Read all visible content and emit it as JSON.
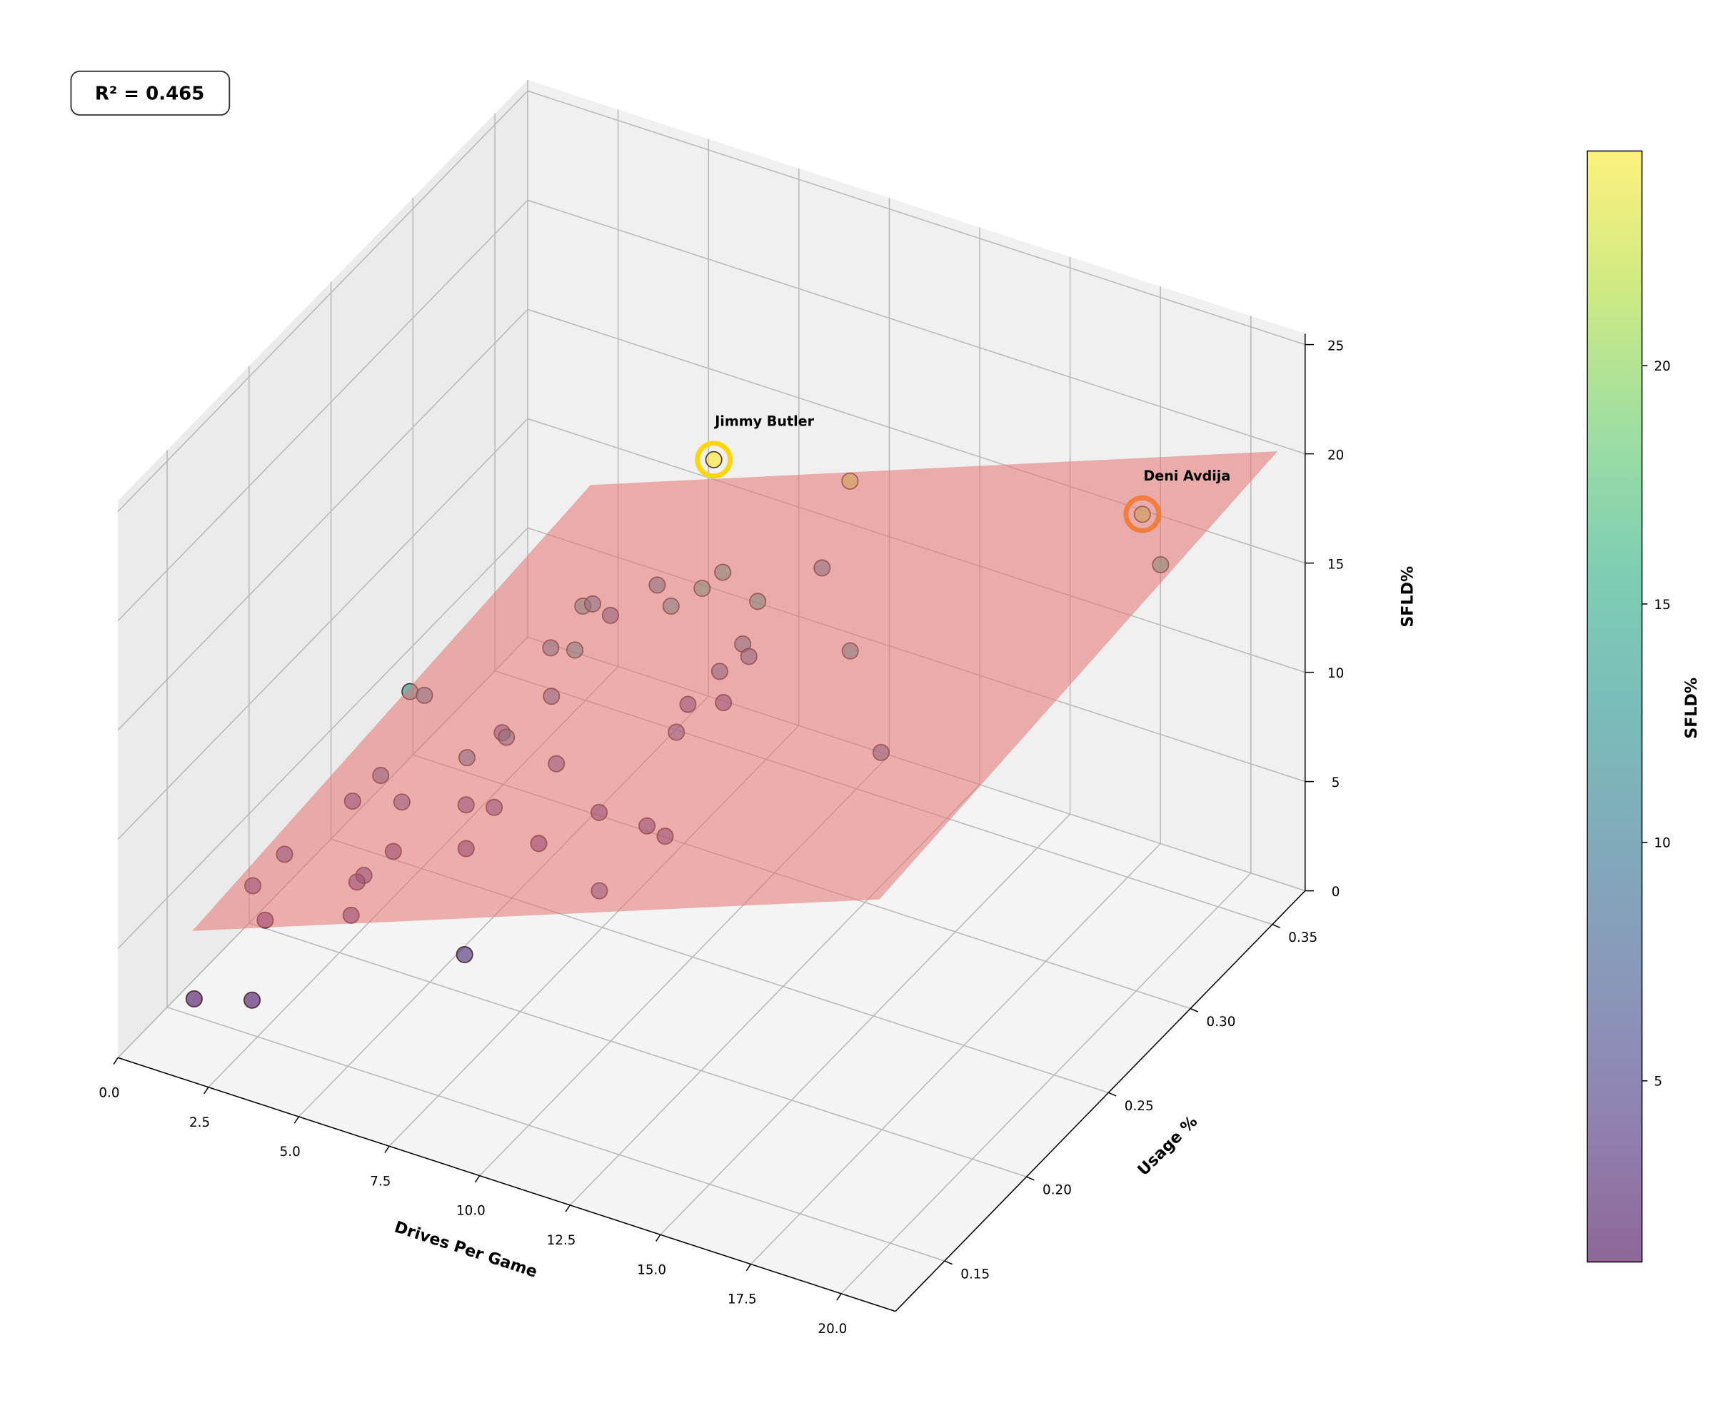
{
  "chart_data": {
    "type": "scatter3d",
    "title": "",
    "xlabel": "Drives Per Game",
    "ylabel": "Usage %",
    "zlabel": "SFLD%",
    "xlim": [
      0,
      21.5
    ],
    "ylim": [
      0.12,
      0.37
    ],
    "zlim": [
      0,
      25.5
    ],
    "xticks": [
      "0.0",
      "2.5",
      "5.0",
      "7.5",
      "10.0",
      "12.5",
      "15.0",
      "17.5",
      "20.0"
    ],
    "yticks": [
      "0.15",
      "0.20",
      "0.25",
      "0.30",
      "0.35"
    ],
    "zticks": [
      "0",
      "5",
      "10",
      "15",
      "20",
      "25"
    ],
    "grid": true,
    "r2_text": "R² = 0.465",
    "colorbar": {
      "label": "SFLD%",
      "colormap": "viridis",
      "range": [
        1.2,
        24.5
      ],
      "ticks": [
        "5",
        "10",
        "15",
        "20"
      ]
    },
    "plane": {
      "color": "#e57373",
      "x_range": [
        1.6,
        20.6
      ],
      "y_range": [
        0.13,
        0.373
      ],
      "z_corners": {
        "xmin_ymin": 5.9,
        "xmax_ymin": 17.6,
        "xmin_ymax": 7.6,
        "xmax_ymax": 19.4
      }
    },
    "points": [
      [
        11.22,
        0.236,
        24.5
      ],
      [
        13.4,
        0.271,
        22.0
      ],
      [
        19.99,
        0.304,
        21.5
      ],
      [
        18.5,
        0.348,
        15.0
      ],
      [
        9.23,
        0.346,
        10.0
      ],
      [
        9.02,
        0.29,
        14.0
      ],
      [
        6.12,
        0.314,
        10.0
      ],
      [
        9.81,
        0.26,
        16.0
      ],
      [
        10.35,
        0.282,
        14.0
      ],
      [
        6.33,
        0.264,
        13.0
      ],
      [
        5.15,
        0.296,
        10.0
      ],
      [
        4.42,
        0.323,
        7.0
      ],
      [
        8.18,
        0.277,
        13.0
      ],
      [
        5.17,
        0.27,
        10.0
      ],
      [
        7.06,
        0.243,
        13.0
      ],
      [
        9.12,
        0.3,
        10.0
      ],
      [
        8.61,
        0.315,
        8.0
      ],
      [
        12.41,
        0.293,
        12.0
      ],
      [
        8.3,
        0.304,
        8.0
      ],
      [
        4.45,
        0.2,
        13.0
      ],
      [
        3.49,
        0.23,
        10.0
      ],
      [
        5.28,
        0.268,
        8.0
      ],
      [
        6.97,
        0.314,
        5.0
      ],
      [
        7.68,
        0.32,
        5.0
      ],
      [
        8.19,
        0.28,
        7.0
      ],
      [
        4.1,
        0.264,
        6.0
      ],
      [
        5.62,
        0.233,
        9.0
      ],
      [
        12.9,
        0.301,
        7.0
      ],
      [
        5.21,
        0.218,
        9.0
      ],
      [
        5.87,
        0.258,
        6.0
      ],
      [
        2.87,
        0.217,
        7.0
      ],
      [
        1.91,
        0.221,
        5.0
      ],
      [
        3.41,
        0.218,
        6.0
      ],
      [
        4.37,
        0.236,
        5.0
      ],
      [
        5.01,
        0.239,
        5.0
      ],
      [
        6.87,
        0.262,
        4.0
      ],
      [
        8.15,
        0.263,
        4.0
      ],
      [
        8.74,
        0.261,
        4.0
      ],
      [
        2.9,
        0.224,
        3.0
      ],
      [
        4.37,
        0.236,
        3.0
      ],
      [
        5.79,
        0.249,
        3.0
      ],
      [
        1.57,
        0.187,
        5.0
      ],
      [
        3.22,
        0.199,
        4.0
      ],
      [
        3.21,
        0.195,
        4.0
      ],
      [
        1.1,
        0.178,
        4.0
      ],
      [
        9.37,
        0.207,
        6.0
      ],
      [
        3.32,
        0.189,
        3.0
      ],
      [
        1.17,
        0.184,
        2.0
      ],
      [
        6.73,
        0.183,
        3.5
      ],
      [
        1.2,
        0.14,
        1.8
      ],
      [
        2.53,
        0.146,
        2.0
      ]
    ],
    "highlights": [
      {
        "label": "Jimmy Butler",
        "point": [
          11.22,
          0.236,
          24.5
        ],
        "ring_color": "#ffd700"
      },
      {
        "label": "Deni Avdija",
        "point": [
          19.99,
          0.304,
          21.5
        ],
        "ring_color": "#ff8c00"
      }
    ]
  }
}
